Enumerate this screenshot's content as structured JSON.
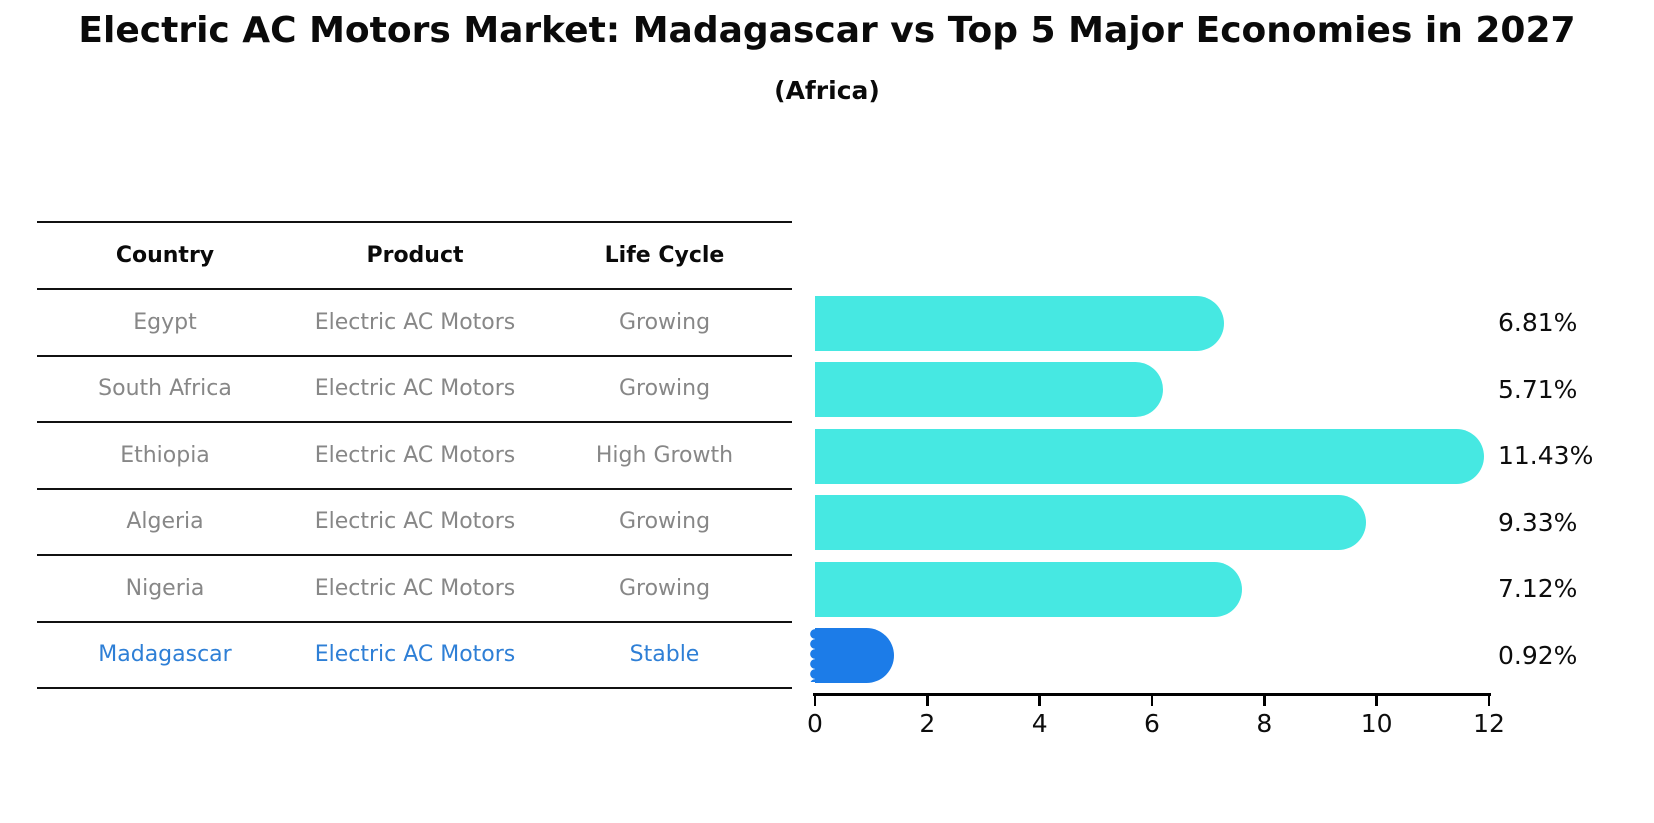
{
  "chart_data": {
    "type": "bar",
    "orientation": "horizontal",
    "title": "Electric AC Motors Market: Madagascar vs Top 5 Major Economies in 2027",
    "subtitle": "(Africa)",
    "categories": [
      "Egypt",
      "South Africa",
      "Ethiopia",
      "Algeria",
      "Nigeria",
      "Madagascar"
    ],
    "values": [
      6.81,
      5.71,
      11.43,
      9.33,
      7.12,
      0.92
    ],
    "value_labels": [
      "6.81%",
      "5.71%",
      "11.43%",
      "9.33%",
      "7.12%",
      "0.92%"
    ],
    "xlim": [
      0,
      12
    ],
    "x_ticks": [
      0,
      2,
      4,
      6,
      8,
      10,
      12
    ],
    "grid": false,
    "legend": "none",
    "bar_color": "#46e8e2",
    "highlight_color": "#1c7ce8",
    "highlight_index": 5
  },
  "table": {
    "headers": [
      "Country",
      "Product",
      "Life Cycle"
    ],
    "rows": [
      {
        "country": "Egypt",
        "product": "Electric AC Motors",
        "life_cycle": "Growing",
        "highlight": false
      },
      {
        "country": "South Africa",
        "product": "Electric AC Motors",
        "life_cycle": "Growing",
        "highlight": false
      },
      {
        "country": "Ethiopia",
        "product": "Electric AC Motors",
        "life_cycle": "High Growth",
        "highlight": false
      },
      {
        "country": "Algeria",
        "product": "Electric AC Motors",
        "life_cycle": "Growing",
        "highlight": false
      },
      {
        "country": "Nigeria",
        "product": "Electric AC Motors",
        "life_cycle": "Growing",
        "highlight": false
      },
      {
        "country": "Madagascar",
        "product": "Electric AC Motors",
        "life_cycle": "Stable",
        "highlight": true
      }
    ]
  },
  "colors": {
    "bar": "#46e8e2",
    "highlight_bar": "#1c7ce8",
    "highlight_text": "#2e7fd6",
    "row_text": "#878787",
    "heading_text": "#0a0a0a",
    "axis": "#000000"
  }
}
